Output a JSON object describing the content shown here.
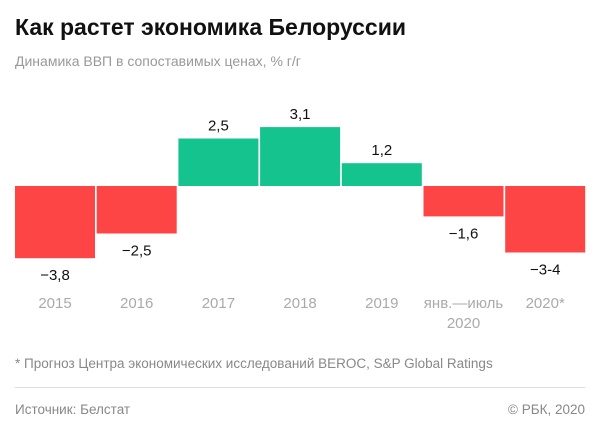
{
  "chart_data": {
    "type": "bar",
    "title": "Как растет экономика Белоруссии",
    "subtitle": "Динамика ВВП в сопоставимых ценах, % г/г",
    "categories": [
      [
        "2015"
      ],
      [
        "2016"
      ],
      [
        "2017"
      ],
      [
        "2018"
      ],
      [
        "2019"
      ],
      [
        "янв.—июль",
        "2020"
      ],
      [
        "2020*"
      ]
    ],
    "values": [
      -3.8,
      -2.5,
      2.5,
      3.1,
      1.2,
      -1.6,
      -3.5
    ],
    "value_labels": [
      "−3,8",
      "−2,5",
      "2,5",
      "3,1",
      "1,2",
      "−1,6",
      "−3-4"
    ],
    "colors": {
      "positive": "#14c38e",
      "negative": "#fd4545"
    },
    "xlabel": "",
    "ylabel": "",
    "grid": false
  },
  "footnote": "* Прогноз Центра экономических исследований BEROC, S&P Global Ratings",
  "source": "Источник: Белстат",
  "copyright": "© РБК, 2020"
}
